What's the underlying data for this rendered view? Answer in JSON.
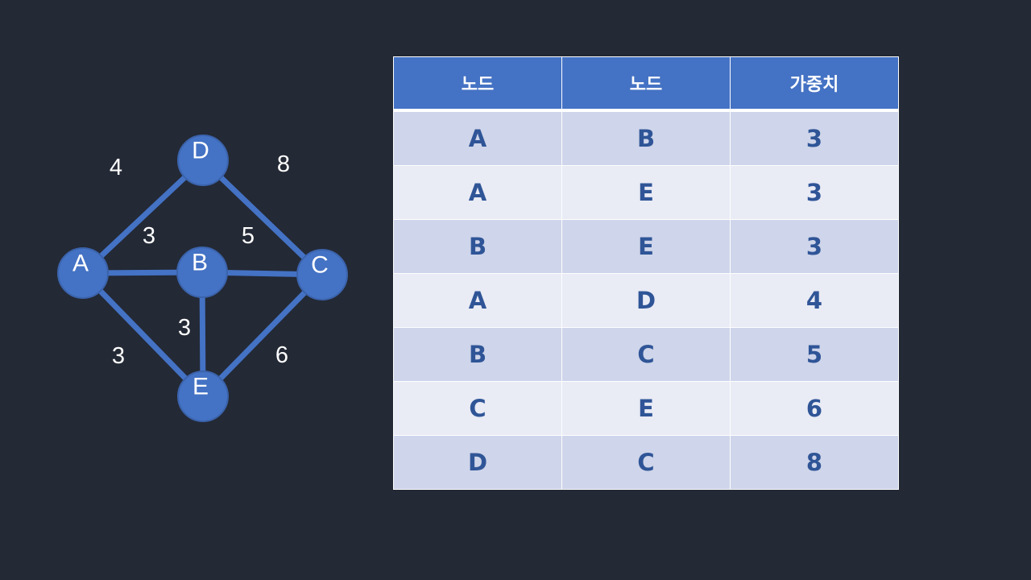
{
  "graph": {
    "nodes": [
      {
        "id": "A",
        "label": "A"
      },
      {
        "id": "B",
        "label": "B"
      },
      {
        "id": "C",
        "label": "C"
      },
      {
        "id": "D",
        "label": "D"
      },
      {
        "id": "E",
        "label": "E"
      }
    ],
    "edges": [
      {
        "from": "A",
        "to": "D",
        "weight": "4"
      },
      {
        "from": "D",
        "to": "C",
        "weight": "8"
      },
      {
        "from": "A",
        "to": "B",
        "weight": "3"
      },
      {
        "from": "B",
        "to": "C",
        "weight": "5"
      },
      {
        "from": "B",
        "to": "E",
        "weight": "3"
      },
      {
        "from": "A",
        "to": "E",
        "weight": "3"
      },
      {
        "from": "E",
        "to": "C",
        "weight": "6"
      }
    ],
    "colors": {
      "node_fill": "#4472c4",
      "edge": "#4472c4",
      "label": "#ffffff"
    }
  },
  "table": {
    "headers": [
      "노드",
      "노드",
      "가중치"
    ],
    "rows": [
      [
        "A",
        "B",
        "3"
      ],
      [
        "A",
        "E",
        "3"
      ],
      [
        "B",
        "E",
        "3"
      ],
      [
        "A",
        "D",
        "4"
      ],
      [
        "B",
        "C",
        "5"
      ],
      [
        "C",
        "E",
        "6"
      ],
      [
        "D",
        "C",
        "8"
      ]
    ],
    "colors": {
      "header_bg": "#4472c4",
      "row_dark": "#cfd5ea",
      "row_light": "#e9ebf5",
      "text": "#2f5597"
    }
  }
}
